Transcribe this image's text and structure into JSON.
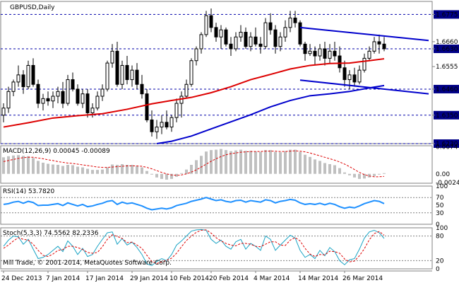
{
  "chart_data": {
    "type": "candlestick",
    "title": "GBPUSD,Daily",
    "copyright": "Mill Trade, © 2001-2014, MetaQuotes Software Corp.",
    "x_ticks": [
      "24 Dec 2013",
      "7 Jan 2014",
      "17 Jan 2014",
      "29 Jan 2014",
      "10 Feb 2014",
      "20 Feb 2014",
      "4 Mar 2014",
      "14 Mar 2014",
      "26 Mar 2014"
    ],
    "price_axis": {
      "labels": [
        "1.6775",
        "1.6660",
        "1.6630",
        "1.6555",
        "1.6460",
        "1.6350",
        "1.6230"
      ],
      "ylim": [
        1.623,
        1.683
      ],
      "highlight_labels": [
        "1.6775",
        "1.6630",
        "1.6460",
        "1.6350",
        "1.6230"
      ]
    },
    "levels": [
      1.6775,
      1.663,
      1.646,
      1.635,
      1.623
    ],
    "candles": [
      [
        1.635,
        1.64,
        1.632,
        1.638
      ],
      [
        1.638,
        1.647,
        1.636,
        1.645
      ],
      [
        1.645,
        1.65,
        1.643,
        1.649
      ],
      [
        1.649,
        1.656,
        1.647,
        1.652
      ],
      [
        1.652,
        1.654,
        1.644,
        1.647
      ],
      [
        1.647,
        1.658,
        1.646,
        1.656
      ],
      [
        1.656,
        1.659,
        1.647,
        1.648
      ],
      [
        1.648,
        1.65,
        1.638,
        1.64
      ],
      [
        1.64,
        1.644,
        1.637,
        1.642
      ],
      [
        1.642,
        1.645,
        1.639,
        1.641
      ],
      [
        1.641,
        1.645,
        1.638,
        1.643
      ],
      [
        1.643,
        1.647,
        1.64,
        1.645
      ],
      [
        1.645,
        1.649,
        1.638,
        1.64
      ],
      [
        1.64,
        1.652,
        1.639,
        1.65
      ],
      [
        1.65,
        1.653,
        1.645,
        1.646
      ],
      [
        1.646,
        1.648,
        1.639,
        1.64
      ],
      [
        1.64,
        1.646,
        1.638,
        1.644
      ],
      [
        1.644,
        1.646,
        1.634,
        1.636
      ],
      [
        1.636,
        1.64,
        1.634,
        1.638
      ],
      [
        1.638,
        1.645,
        1.637,
        1.643
      ],
      [
        1.643,
        1.648,
        1.641,
        1.646
      ],
      [
        1.646,
        1.658,
        1.645,
        1.657
      ],
      [
        1.657,
        1.665,
        1.655,
        1.662
      ],
      [
        1.662,
        1.666,
        1.647,
        1.648
      ],
      [
        1.648,
        1.658,
        1.646,
        1.656
      ],
      [
        1.656,
        1.66,
        1.648,
        1.65
      ],
      [
        1.65,
        1.656,
        1.647,
        1.654
      ],
      [
        1.654,
        1.657,
        1.646,
        1.648
      ],
      [
        1.648,
        1.652,
        1.642,
        1.644
      ],
      [
        1.644,
        1.646,
        1.632,
        1.633
      ],
      [
        1.633,
        1.637,
        1.626,
        1.628
      ],
      [
        1.628,
        1.633,
        1.625,
        1.63
      ],
      [
        1.63,
        1.635,
        1.627,
        1.632
      ],
      [
        1.632,
        1.637,
        1.629,
        1.63
      ],
      [
        1.63,
        1.635,
        1.628,
        1.634
      ],
      [
        1.634,
        1.642,
        1.632,
        1.64
      ],
      [
        1.64,
        1.645,
        1.634,
        1.643
      ],
      [
        1.643,
        1.65,
        1.642,
        1.648
      ],
      [
        1.648,
        1.659,
        1.647,
        1.658
      ],
      [
        1.658,
        1.664,
        1.656,
        1.663
      ],
      [
        1.663,
        1.67,
        1.661,
        1.669
      ],
      [
        1.669,
        1.679,
        1.668,
        1.677
      ],
      [
        1.677,
        1.68,
        1.67,
        1.672
      ],
      [
        1.672,
        1.674,
        1.666,
        1.668
      ],
      [
        1.668,
        1.673,
        1.663,
        1.671
      ],
      [
        1.671,
        1.672,
        1.664,
        1.665
      ],
      [
        1.665,
        1.668,
        1.66,
        1.663
      ],
      [
        1.663,
        1.67,
        1.662,
        1.668
      ],
      [
        1.668,
        1.673,
        1.666,
        1.67
      ],
      [
        1.67,
        1.672,
        1.663,
        1.664
      ],
      [
        1.664,
        1.67,
        1.662,
        1.668
      ],
      [
        1.668,
        1.672,
        1.664,
        1.665
      ],
      [
        1.665,
        1.668,
        1.661,
        1.664
      ],
      [
        1.664,
        1.676,
        1.663,
        1.674
      ],
      [
        1.674,
        1.678,
        1.669,
        1.671
      ],
      [
        1.671,
        1.673,
        1.661,
        1.664
      ],
      [
        1.664,
        1.67,
        1.662,
        1.668
      ],
      [
        1.668,
        1.675,
        1.666,
        1.672
      ],
      [
        1.672,
        1.679,
        1.67,
        1.676
      ],
      [
        1.676,
        1.679,
        1.672,
        1.674
      ],
      [
        1.674,
        1.675,
        1.664,
        1.665
      ],
      [
        1.665,
        1.666,
        1.658,
        1.661
      ],
      [
        1.661,
        1.665,
        1.66,
        1.662
      ],
      [
        1.662,
        1.664,
        1.656,
        1.66
      ],
      [
        1.66,
        1.665,
        1.658,
        1.663
      ],
      [
        1.663,
        1.666,
        1.656,
        1.659
      ],
      [
        1.659,
        1.665,
        1.657,
        1.662
      ],
      [
        1.662,
        1.666,
        1.658,
        1.66
      ],
      [
        1.66,
        1.664,
        1.653,
        1.655
      ],
      [
        1.655,
        1.658,
        1.647,
        1.65
      ],
      [
        1.65,
        1.654,
        1.646,
        1.652
      ],
      [
        1.652,
        1.655,
        1.647,
        1.649
      ],
      [
        1.649,
        1.656,
        1.648,
        1.654
      ],
      [
        1.654,
        1.661,
        1.653,
        1.659
      ],
      [
        1.659,
        1.664,
        1.658,
        1.662
      ],
      [
        1.662,
        1.668,
        1.661,
        1.666
      ],
      [
        1.666,
        1.669,
        1.661,
        1.665
      ],
      [
        1.665,
        1.668,
        1.662,
        1.663
      ]
    ],
    "sma_red": [
      [
        0,
        1.63
      ],
      [
        5,
        1.6318
      ],
      [
        10,
        1.6338
      ],
      [
        15,
        1.6348
      ],
      [
        20,
        1.6356
      ],
      [
        25,
        1.6375
      ],
      [
        30,
        1.6398
      ],
      [
        34,
        1.6412
      ],
      [
        38,
        1.6425
      ],
      [
        42,
        1.6445
      ],
      [
        46,
        1.647
      ],
      [
        50,
        1.65
      ],
      [
        54,
        1.6522
      ],
      [
        58,
        1.6545
      ],
      [
        62,
        1.656
      ],
      [
        66,
        1.6568
      ],
      [
        70,
        1.657
      ],
      [
        74,
        1.658
      ],
      [
        77,
        1.6588
      ]
    ],
    "sma_blue": [
      [
        31,
        1.623
      ],
      [
        34,
        1.624
      ],
      [
        38,
        1.6262
      ],
      [
        42,
        1.6292
      ],
      [
        46,
        1.6322
      ],
      [
        50,
        1.6352
      ],
      [
        54,
        1.6385
      ],
      [
        58,
        1.6412
      ],
      [
        62,
        1.6432
      ],
      [
        66,
        1.644
      ],
      [
        70,
        1.645
      ],
      [
        74,
        1.6465
      ],
      [
        77,
        1.6475
      ]
    ],
    "trendlines": [
      {
        "from": [
          60,
          1.672
        ],
        "to": [
          86,
          1.6665
        ]
      },
      {
        "from": [
          60,
          1.6498
        ],
        "to": [
          86,
          1.644
        ]
      }
    ],
    "macd": {
      "label": "MACD(12,26,9) 0.00045 -0.00089",
      "scale_labels": [
        "0.00747",
        "0.00",
        "-0.00244"
      ],
      "ylim": [
        -0.0026,
        0.0078
      ],
      "histogram": [
        0.0046,
        0.0049,
        0.0051,
        0.0052,
        0.005,
        0.0049,
        0.0044,
        0.0036,
        0.0031,
        0.0028,
        0.0026,
        0.0025,
        0.0022,
        0.0025,
        0.0024,
        0.002,
        0.0018,
        0.0014,
        0.0011,
        0.0011,
        0.0012,
        0.0018,
        0.0026,
        0.0025,
        0.0027,
        0.0025,
        0.0025,
        0.0022,
        0.0018,
        0.0008,
        -0.0002,
        -0.001,
        -0.0014,
        -0.0016,
        -0.0014,
        -0.0008,
        0.0002,
        0.0012,
        0.0025,
        0.0038,
        0.005,
        0.0062,
        0.0066,
        0.0067,
        0.0069,
        0.0066,
        0.0063,
        0.0065,
        0.0067,
        0.0064,
        0.0064,
        0.0062,
        0.0061,
        0.0066,
        0.0066,
        0.0061,
        0.006,
        0.0063,
        0.0067,
        0.0067,
        0.0061,
        0.0053,
        0.0047,
        0.004,
        0.0036,
        0.003,
        0.0027,
        0.0024,
        0.0016,
        0.0004,
        -0.0004,
        -0.001,
        -0.0014,
        -0.0013,
        -0.001,
        -0.0006,
        -0.0002,
        0.0002
      ],
      "signal": [
        0.0034,
        0.0037,
        0.004,
        0.0043,
        0.0045,
        0.0046,
        0.0046,
        0.0044,
        0.0042,
        0.0039,
        0.0037,
        0.0034,
        0.0032,
        0.003,
        0.0029,
        0.0027,
        0.0025,
        0.0023,
        0.0021,
        0.0019,
        0.0018,
        0.0018,
        0.0019,
        0.002,
        0.0021,
        0.0022,
        0.0022,
        0.0022,
        0.0021,
        0.0018,
        0.0014,
        0.0009,
        0.0004,
        0.0,
        -0.0003,
        -0.0004,
        -0.0003,
        0.0,
        0.0005,
        0.0011,
        0.0019,
        0.0027,
        0.0035,
        0.0042,
        0.0048,
        0.0053,
        0.0056,
        0.0058,
        0.006,
        0.0061,
        0.0062,
        0.0062,
        0.0062,
        0.0063,
        0.0063,
        0.0063,
        0.0062,
        0.0062,
        0.0063,
        0.0064,
        0.0063,
        0.0061,
        0.0058,
        0.0054,
        0.005,
        0.0046,
        0.0042,
        0.0038,
        0.0033,
        0.0027,
        0.002,
        0.0012,
        0.0004,
        -0.0002,
        -0.0006,
        -0.0008,
        -0.0008,
        -0.0007
      ]
    },
    "rsi": {
      "label": "RSI(14) 53.7820",
      "scale_labels": [
        "100",
        "70",
        "50",
        "30",
        "0"
      ],
      "levels": [
        70,
        30
      ],
      "ylim": [
        0,
        100
      ],
      "values": [
        52,
        54,
        58,
        60,
        55,
        60,
        57,
        49,
        50,
        50,
        52,
        54,
        49,
        56,
        52,
        48,
        52,
        46,
        48,
        52,
        55,
        60,
        62,
        52,
        58,
        54,
        56,
        52,
        48,
        42,
        38,
        40,
        42,
        40,
        43,
        49,
        52,
        55,
        60,
        63,
        66,
        70,
        66,
        62,
        64,
        60,
        58,
        62,
        63,
        58,
        62,
        60,
        58,
        64,
        62,
        56,
        60,
        62,
        65,
        63,
        56,
        52,
        54,
        52,
        55,
        51,
        55,
        52,
        46,
        42,
        45,
        43,
        48,
        54,
        58,
        62,
        60,
        54
      ]
    },
    "stoch": {
      "label": "Stoch(5,3,3) 74.5562 82.2336",
      "scale_labels": [
        "100",
        "80",
        "20",
        "0"
      ],
      "levels": [
        80,
        20
      ],
      "ylim": [
        0,
        100
      ],
      "main": [
        55,
        70,
        80,
        78,
        60,
        72,
        48,
        25,
        28,
        35,
        45,
        55,
        42,
        68,
        55,
        35,
        50,
        30,
        35,
        55,
        72,
        88,
        90,
        60,
        74,
        58,
        65,
        52,
        35,
        12,
        8,
        18,
        25,
        20,
        35,
        58,
        68,
        80,
        92,
        95,
        96,
        94,
        72,
        62,
        70,
        55,
        48,
        66,
        72,
        48,
        62,
        55,
        45,
        80,
        72,
        45,
        58,
        70,
        82,
        75,
        45,
        28,
        35,
        25,
        45,
        32,
        52,
        42,
        20,
        10,
        22,
        25,
        48,
        75,
        90,
        94,
        88,
        74
      ],
      "signal": [
        50,
        58,
        68,
        76,
        72,
        70,
        60,
        45,
        33,
        30,
        36,
        45,
        47,
        55,
        55,
        52,
        47,
        40,
        38,
        40,
        54,
        72,
        83,
        79,
        74,
        64,
        65,
        58,
        50,
        33,
        18,
        13,
        17,
        21,
        26,
        38,
        54,
        69,
        80,
        89,
        94,
        95,
        87,
        76,
        68,
        62,
        58,
        56,
        62,
        62,
        60,
        55,
        54,
        60,
        66,
        66,
        58,
        57,
        70,
        76,
        68,
        50,
        36,
        30,
        35,
        34,
        43,
        42,
        38,
        24,
        17,
        19,
        32,
        49,
        71,
        86,
        91,
        82
      ]
    }
  }
}
